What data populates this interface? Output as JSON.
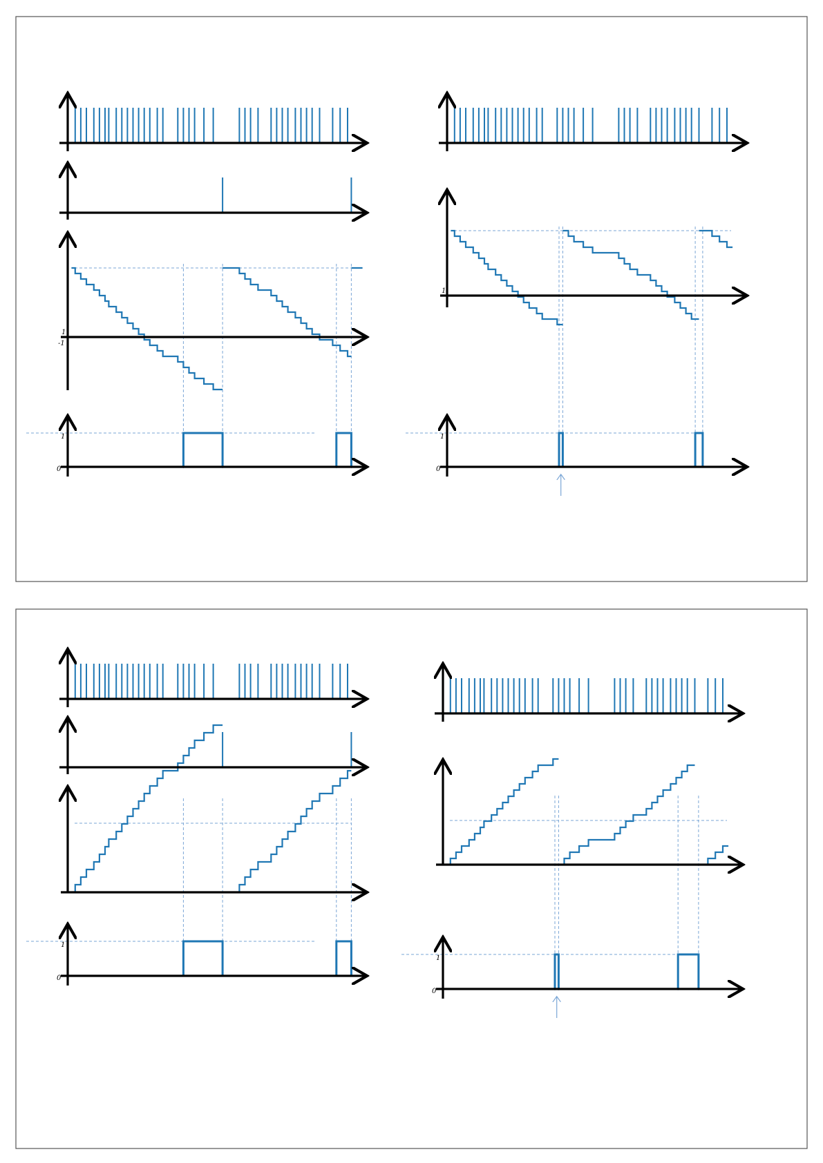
{
  "colors": {
    "signal": "#1f77b4",
    "guide": "#7aa6d6",
    "axis": "#000000",
    "frame": "#555555"
  },
  "icons": {
    "axis_arrow": "arrow-head-icon",
    "marker_arrow": "up-arrow-icon"
  },
  "tick_labels": {
    "one": "1",
    "zero": "0",
    "minus_one": "-1"
  },
  "panels": [
    {
      "id": "top-left",
      "pulse_train": [
        0.04,
        0.07,
        0.1,
        0.14,
        0.17,
        0.2,
        0.22,
        0.26,
        0.29,
        0.32,
        0.35,
        0.38,
        0.41,
        0.44,
        0.48,
        0.51,
        0.59,
        0.62,
        0.65,
        0.68,
        0.73,
        0.78,
        0.92,
        0.95,
        0.98,
        1.02,
        1.09,
        1.12,
        1.15,
        1.18,
        1.22,
        1.25,
        1.28,
        1.31,
        1.35,
        1.42,
        1.46,
        1.5
      ],
      "reset_spikes": [
        0.83,
        1.52
      ],
      "counter": {
        "direction": "down",
        "start": 7,
        "threshold": 1,
        "reset_times": [
          0.83,
          1.52
        ],
        "cross_times": [
          0.62,
          1.44
        ]
      },
      "output": {
        "pulses": [
          [
            0.62,
            0.83
          ],
          [
            1.44,
            1.52
          ]
        ]
      }
    },
    {
      "id": "top-right",
      "pulse_train": [
        0.04,
        0.07,
        0.1,
        0.14,
        0.17,
        0.2,
        0.22,
        0.26,
        0.29,
        0.32,
        0.35,
        0.38,
        0.41,
        0.44,
        0.48,
        0.51,
        0.59,
        0.62,
        0.65,
        0.68,
        0.73,
        0.78,
        0.92,
        0.95,
        0.98,
        1.02,
        1.09,
        1.12,
        1.15,
        1.18,
        1.22,
        1.25,
        1.28,
        1.31,
        1.35,
        1.42,
        1.46,
        1.5
      ],
      "counter": {
        "direction": "down",
        "start": 7,
        "threshold": 1,
        "reset_times": [
          0.62,
          1.35
        ]
      },
      "output": {
        "pulses": [
          [
            0.6,
            0.62
          ],
          [
            1.33,
            1.37
          ]
        ]
      },
      "marker_time": 0.61
    },
    {
      "id": "bottom-left",
      "pulse_train": [
        0.04,
        0.07,
        0.1,
        0.14,
        0.17,
        0.2,
        0.22,
        0.26,
        0.29,
        0.32,
        0.35,
        0.38,
        0.41,
        0.44,
        0.48,
        0.51,
        0.59,
        0.62,
        0.65,
        0.68,
        0.73,
        0.78,
        0.92,
        0.95,
        0.98,
        1.02,
        1.09,
        1.12,
        1.15,
        1.18,
        1.22,
        1.25,
        1.28,
        1.31,
        1.35,
        1.42,
        1.46,
        1.5
      ],
      "reset_spikes": [
        0.83,
        1.52
      ],
      "counter": {
        "direction": "up",
        "start": 0,
        "threshold": 10,
        "reset_times": [
          0.83,
          1.52
        ],
        "cross_times": [
          0.62,
          1.44
        ]
      },
      "output": {
        "pulses": [
          [
            0.62,
            0.83
          ],
          [
            1.44,
            1.52
          ]
        ]
      }
    },
    {
      "id": "bottom-right",
      "pulse_train": [
        0.04,
        0.07,
        0.1,
        0.14,
        0.17,
        0.2,
        0.22,
        0.26,
        0.29,
        0.32,
        0.35,
        0.38,
        0.41,
        0.44,
        0.48,
        0.51,
        0.59,
        0.62,
        0.65,
        0.68,
        0.73,
        0.78,
        0.92,
        0.95,
        0.98,
        1.02,
        1.09,
        1.12,
        1.15,
        1.18,
        1.22,
        1.25,
        1.28,
        1.31,
        1.35,
        1.42,
        1.46,
        1.5
      ],
      "counter": {
        "direction": "up",
        "start": 0,
        "threshold": 10,
        "reset_times": [
          0.62,
          1.35
        ]
      },
      "output": {
        "pulses": [
          [
            0.6,
            0.62
          ],
          [
            1.26,
            1.37
          ]
        ]
      },
      "marker_time": 0.61
    }
  ]
}
